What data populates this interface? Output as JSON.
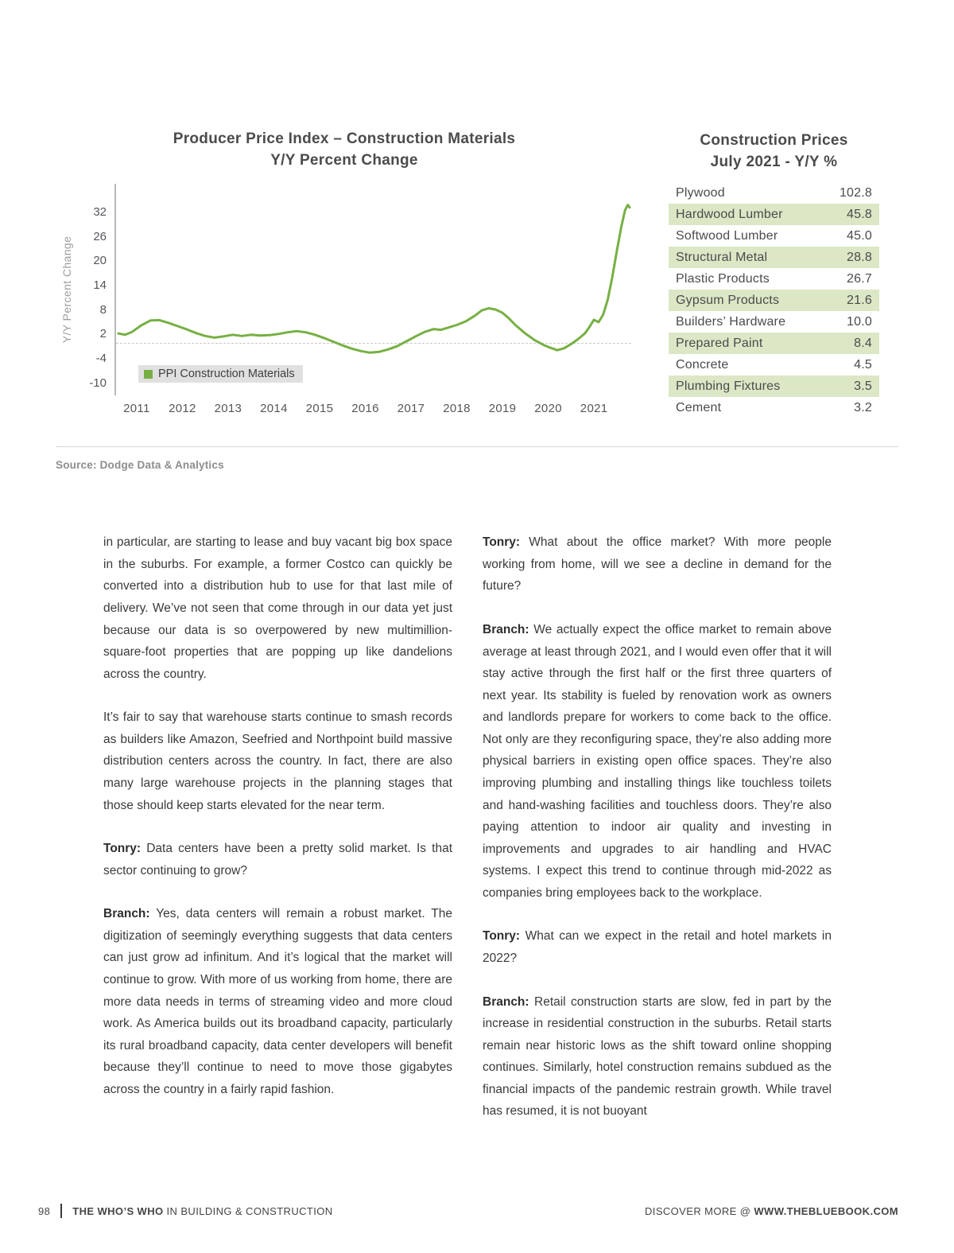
{
  "page": {
    "number": "98",
    "footer_left_bold": "THE WHO’S WHO",
    "footer_left_rest": " IN BUILDING & CONSTRUCTION",
    "footer_right_prefix": "DISCOVER MORE @ ",
    "footer_right_bold": "WWW.THEBLUEBOOK.COM",
    "source": "Source: Dodge Data & Analytics"
  },
  "chart_data": {
    "type": "line",
    "title_line1": "Producer Price Index – Construction Materials",
    "title_line2": "Y/Y Percent Change",
    "ylabel": "Y/Y Percent Change",
    "legend": "PPI Construction Materials",
    "legend_position": "bottom-left-inside",
    "line_color": "#76b043",
    "grid": "dashed zero line only",
    "ylim": [
      -13,
      39
    ],
    "yticks": [
      32,
      26,
      20,
      14,
      8,
      2,
      -4,
      -10
    ],
    "x_categories": [
      "2011",
      "2012",
      "2013",
      "2014",
      "2015",
      "2016",
      "2017",
      "2018",
      "2019",
      "2020",
      "2021"
    ],
    "series": [
      {
        "name": "PPI Construction Materials",
        "points": [
          [
            2010.6,
            2.2
          ],
          [
            2010.75,
            1.9
          ],
          [
            2010.9,
            2.6
          ],
          [
            2011.1,
            4.2
          ],
          [
            2011.3,
            5.4
          ],
          [
            2011.5,
            5.5
          ],
          [
            2011.7,
            4.8
          ],
          [
            2011.9,
            4.0
          ],
          [
            2012.1,
            3.2
          ],
          [
            2012.3,
            2.3
          ],
          [
            2012.5,
            1.6
          ],
          [
            2012.7,
            1.2
          ],
          [
            2012.9,
            1.5
          ],
          [
            2013.1,
            1.9
          ],
          [
            2013.3,
            1.6
          ],
          [
            2013.5,
            1.9
          ],
          [
            2013.7,
            1.7
          ],
          [
            2013.9,
            1.8
          ],
          [
            2014.1,
            2.1
          ],
          [
            2014.3,
            2.5
          ],
          [
            2014.5,
            2.8
          ],
          [
            2014.7,
            2.5
          ],
          [
            2014.9,
            1.9
          ],
          [
            2015.1,
            1.1
          ],
          [
            2015.3,
            0.2
          ],
          [
            2015.5,
            -0.7
          ],
          [
            2015.7,
            -1.5
          ],
          [
            2015.9,
            -2.1
          ],
          [
            2016.1,
            -2.5
          ],
          [
            2016.3,
            -2.3
          ],
          [
            2016.5,
            -1.7
          ],
          [
            2016.7,
            -0.9
          ],
          [
            2016.9,
            0.3
          ],
          [
            2017.1,
            1.5
          ],
          [
            2017.3,
            2.6
          ],
          [
            2017.5,
            3.3
          ],
          [
            2017.65,
            3.1
          ],
          [
            2017.8,
            3.6
          ],
          [
            2018.0,
            4.3
          ],
          [
            2018.2,
            5.2
          ],
          [
            2018.4,
            6.6
          ],
          [
            2018.55,
            7.9
          ],
          [
            2018.7,
            8.4
          ],
          [
            2018.85,
            8.1
          ],
          [
            2019.0,
            7.3
          ],
          [
            2019.15,
            5.8
          ],
          [
            2019.3,
            4.1
          ],
          [
            2019.5,
            2.2
          ],
          [
            2019.7,
            0.6
          ],
          [
            2019.9,
            -0.6
          ],
          [
            2020.05,
            -1.3
          ],
          [
            2020.2,
            -1.9
          ],
          [
            2020.35,
            -1.4
          ],
          [
            2020.5,
            -0.4
          ],
          [
            2020.65,
            0.8
          ],
          [
            2020.8,
            2.2
          ],
          [
            2020.9,
            3.8
          ],
          [
            2021.0,
            5.6
          ],
          [
            2021.1,
            5.0
          ],
          [
            2021.2,
            6.8
          ],
          [
            2021.3,
            10.5
          ],
          [
            2021.4,
            16.0
          ],
          [
            2021.5,
            22.5
          ],
          [
            2021.6,
            28.5
          ],
          [
            2021.68,
            32.5
          ],
          [
            2021.74,
            33.8
          ],
          [
            2021.78,
            33.2
          ]
        ]
      }
    ]
  },
  "price_table": {
    "title_line1": "Construction Prices",
    "title_line2": "July 2021 - Y/Y %",
    "highlight_color": "#dbe7c5",
    "rows": [
      {
        "label": "Plywood",
        "value": "102.8",
        "highlight": false
      },
      {
        "label": "Hardwood Lumber",
        "value": "45.8",
        "highlight": true
      },
      {
        "label": "Softwood Lumber",
        "value": "45.0",
        "highlight": false
      },
      {
        "label": "Structural Metal",
        "value": "28.8",
        "highlight": true
      },
      {
        "label": "Plastic Products",
        "value": "26.7",
        "highlight": false
      },
      {
        "label": "Gypsum Products",
        "value": "21.6",
        "highlight": true
      },
      {
        "label": "Builders’ Hardware",
        "value": "10.0",
        "highlight": false
      },
      {
        "label": "Prepared Paint",
        "value": "8.4",
        "highlight": true
      },
      {
        "label": "Concrete",
        "value": "4.5",
        "highlight": false
      },
      {
        "label": "Plumbing Fixtures",
        "value": "3.5",
        "highlight": true
      },
      {
        "label": "Cement",
        "value": "3.2",
        "highlight": false
      }
    ]
  },
  "article": {
    "left_column": [
      {
        "speaker": "",
        "text": "in particular, are starting to lease and buy vacant big box space in the suburbs. For example, a former Costco can quickly be converted into a distribution hub to use for that last mile of delivery. We’ve not seen that come through in our data yet just because our data is so overpowered by new multimillion-square-foot properties that are popping up like dandelions across the country."
      },
      {
        "speaker": "",
        "text": "It’s fair to say that warehouse starts continue to smash records as builders like Amazon, Seefried and Northpoint build massive distribution centers across the country. In fact, there are also many large warehouse projects in the planning stages that those should keep starts elevated for the near term."
      },
      {
        "speaker": "Tonry:",
        "text": "Data centers have been a pretty solid market. Is that sector continuing to grow?"
      },
      {
        "speaker": "Branch:",
        "text": "Yes, data centers will remain a robust market. The digitization of seemingly everything suggests that data centers can just grow ad infinitum. And it’s logical that the market will continue to grow. With more of us working from home, there are more data needs in terms of streaming video and more cloud work. As America builds out its broadband capacity, particularly its rural broadband capacity, data center developers will benefit because they’ll continue to need to move those gigabytes across the country in a fairly rapid fashion."
      }
    ],
    "right_column": [
      {
        "speaker": "Tonry:",
        "text": "What about the office market? With more people working from home, will we see a decline in demand for the future?"
      },
      {
        "speaker": "Branch:",
        "text": "We actually expect the office market to remain above average at least through 2021, and I would even offer that it will stay active through the first half or the first three quarters of next year. Its stability is fueled by renovation work as owners and landlords prepare for workers to come back to the office. Not only are they reconfiguring space, they’re also adding more physical barriers in existing open office spaces. They’re also improving plumbing and installing things like touchless toilets and hand-washing facilities and touchless doors. They’re also paying attention to indoor air quality and investing in improvements and upgrades to air handling and HVAC systems. I expect this trend to continue through mid-2022 as companies bring employees back to the workplace."
      },
      {
        "speaker": "Tonry:",
        "text": "What can we expect in the retail and hotel markets in 2022?"
      },
      {
        "speaker": "Branch:",
        "text": "Retail construction starts are slow, fed in part by the increase in residential construction in the suburbs. Retail starts remain near historic lows as the shift toward online shopping continues. Similarly, hotel construction remains subdued as the financial impacts of the pandemic restrain growth. While travel has resumed, it is not buoyant"
      }
    ]
  }
}
